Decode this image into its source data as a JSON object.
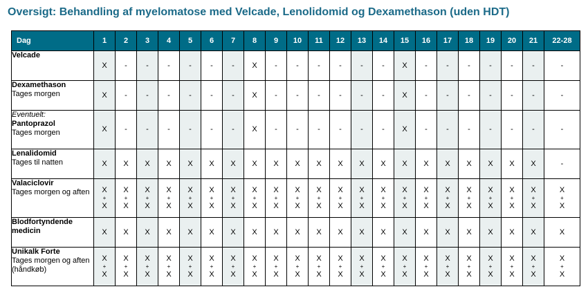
{
  "title": "Oversigt: Behandling af myelomatose med Velcade, Lenolidomid og Dexamethason (uden HDT)",
  "header": {
    "first": "Dag",
    "days": [
      "1",
      "2",
      "3",
      "4",
      "5",
      "6",
      "7",
      "8",
      "9",
      "10",
      "11",
      "12",
      "13",
      "14",
      "15",
      "16",
      "17",
      "18",
      "19",
      "20",
      "21",
      "22-28"
    ]
  },
  "rows": [
    {
      "prefix": "",
      "name": "Velcade",
      "sub": "",
      "cells": [
        "X",
        "-",
        "-",
        "-",
        "-",
        "-",
        "-",
        "X",
        "-",
        "-",
        "-",
        "-",
        "-",
        "-",
        "X",
        "-",
        "-",
        "-",
        "-",
        "-",
        "-",
        "-"
      ]
    },
    {
      "prefix": "",
      "name": "Dexamethason",
      "sub": "Tages morgen",
      "cells": [
        "X",
        "-",
        "-",
        "-",
        "-",
        "-",
        "-",
        "X",
        "-",
        "-",
        "-",
        "-",
        "-",
        "-",
        "X",
        "-",
        "-",
        "-",
        "-",
        "-",
        "-",
        "-"
      ]
    },
    {
      "prefix": "Eventuelt:",
      "name": "Pantoprazol",
      "sub": "Tages morgen",
      "cells": [
        "X",
        "-",
        "-",
        "-",
        "-",
        "-",
        "-",
        "X",
        "-",
        "-",
        "-",
        "-",
        "-",
        "-",
        "X",
        "-",
        "-",
        "-",
        "-",
        "-",
        "-",
        "-"
      ]
    },
    {
      "prefix": "",
      "name": "Lenalidomid",
      "sub": "Tages til natten",
      "cells": [
        "X",
        "X",
        "X",
        "X",
        "X",
        "X",
        "X",
        "X",
        "X",
        "X",
        "X",
        "X",
        "X",
        "X",
        "X",
        "X",
        "X",
        "X",
        "X",
        "X",
        "X",
        "-"
      ]
    },
    {
      "prefix": "",
      "name": "Valaciclovir",
      "sub": "Tages morgen og aften",
      "cells": [
        "X+X",
        "X+X",
        "X+X",
        "X+X",
        "X+X",
        "X+X",
        "X+X",
        "X+X",
        "X+X",
        "X+X",
        "X+X",
        "X+X",
        "X+X",
        "X+X",
        "X+X",
        "X+X",
        "X+X",
        "X+X",
        "X+X",
        "X+X",
        "X+X",
        "X+X"
      ]
    },
    {
      "prefix": "",
      "name": "Blodfortyndende medicin",
      "sub": "",
      "cells": [
        "X",
        "X",
        "X",
        "X",
        "X",
        "X",
        "X",
        "X",
        "X",
        "X",
        "X",
        "X",
        "X",
        "X",
        "X",
        "X",
        "X",
        "X",
        "X",
        "X",
        "X",
        "X"
      ]
    },
    {
      "prefix": "",
      "name": "Unikalk Forte",
      "sub": "Tages morgen og aften (håndkøb)",
      "cells": [
        "X+X",
        "X+X",
        "X+X",
        "X+X",
        "X+X",
        "X+X",
        "X+X",
        "X+X",
        "X+X",
        "X+X",
        "X+X",
        "X+X",
        "X+X",
        "X+X",
        "X+X",
        "X+X",
        "X+X",
        "X+X",
        "X+X",
        "X+X",
        "X+X",
        "X+X"
      ]
    }
  ]
}
